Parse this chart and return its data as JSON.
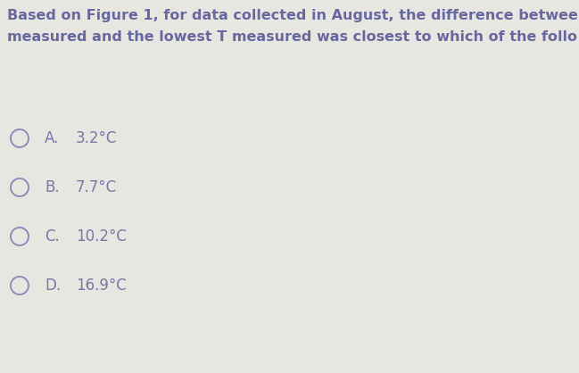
{
  "background_color": "#e8e6e0",
  "header_text_line1": "Based on Figure 1, for data collected in August, the difference betwee",
  "header_text_line2": "measured and the lowest T measured was closest to which of the follo",
  "options": [
    {
      "label": "A.",
      "value": "3.2°C"
    },
    {
      "label": "B.",
      "value": "7.7°C"
    },
    {
      "label": "C.",
      "value": "10.2°C"
    },
    {
      "label": "D.",
      "value": "16.9°C"
    }
  ],
  "text_color": "#7878a8",
  "header_color": "#6868a0",
  "circle_color": "#8888b8",
  "header_fontsize": 11.5,
  "option_fontsize": 12.0,
  "fig_width": 6.49,
  "fig_height": 4.18,
  "dpi": 100
}
